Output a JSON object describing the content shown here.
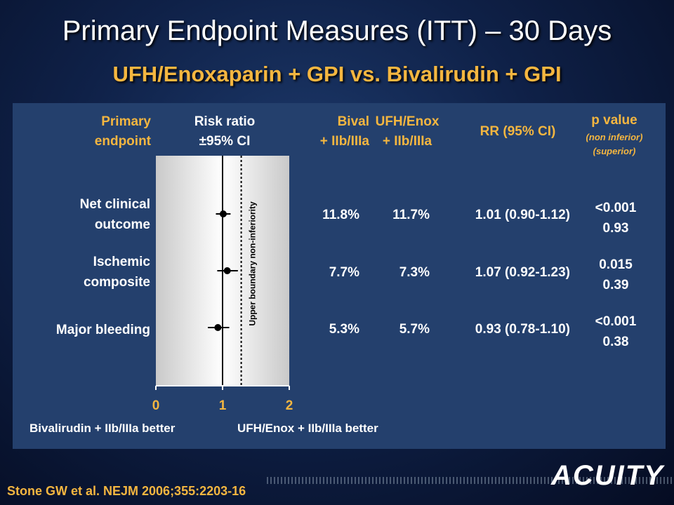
{
  "title": "Primary Endpoint Measures (ITT) – 30 Days",
  "subtitle": "UFH/Enoxaparin + GPI vs. Bivalirudin + GPI",
  "headers": {
    "endpoint": [
      "Primary",
      "endpoint"
    ],
    "risk_ratio": [
      "Risk ratio",
      "±95% CI"
    ],
    "bival": [
      "Bival",
      "+ IIb/IIIa"
    ],
    "ufh": [
      "UFH/Enox",
      "+ IIb/IIIa"
    ],
    "rr": "RR (95% CI)",
    "pvalue": [
      "p value",
      "(non inferior)",
      "(superior)"
    ]
  },
  "rows": [
    {
      "label": [
        "Net clinical",
        "outcome"
      ],
      "bival": "11.8%",
      "ufh": "11.7%",
      "rr": "1.01 (0.90-1.12)",
      "p_noninf": "<0.001",
      "p_sup": "0.93"
    },
    {
      "label": [
        "Ischemic",
        "composite"
      ],
      "bival": "7.7%",
      "ufh": "7.3%",
      "rr": "1.07 (0.92-1.23)",
      "p_noninf": "0.015",
      "p_sup": "0.39"
    },
    {
      "label": [
        "Major bleeding"
      ],
      "bival": "5.3%",
      "ufh": "5.7%",
      "rr": "0.93 (0.78-1.10)",
      "p_noninf": "<0.001",
      "p_sup": "0.38"
    }
  ],
  "footer": {
    "left": "Bivalirudin + IIb/IIIa better",
    "right": "UFH/Enox + IIb/IIIa better"
  },
  "citation": "Stone GW et al. NEJM 2006;355:2203-16",
  "logo": "ACUITY",
  "chart_data": {
    "type": "forest",
    "categories": [
      "Net clinical outcome",
      "Ischemic composite",
      "Major bleeding"
    ],
    "estimates": [
      1.01,
      1.07,
      0.93
    ],
    "ci_low": [
      0.9,
      0.92,
      0.78
    ],
    "ci_high": [
      1.12,
      1.23,
      1.1
    ],
    "xlim": [
      0,
      2
    ],
    "xticks": [
      "0",
      "1",
      "2"
    ],
    "reference_line": 1,
    "noninferiority_boundary": 1.28,
    "boundary_label": "Upper boundary non-inferiority"
  },
  "colors": {
    "gold": "#f4b640",
    "panel": "#24406d"
  }
}
